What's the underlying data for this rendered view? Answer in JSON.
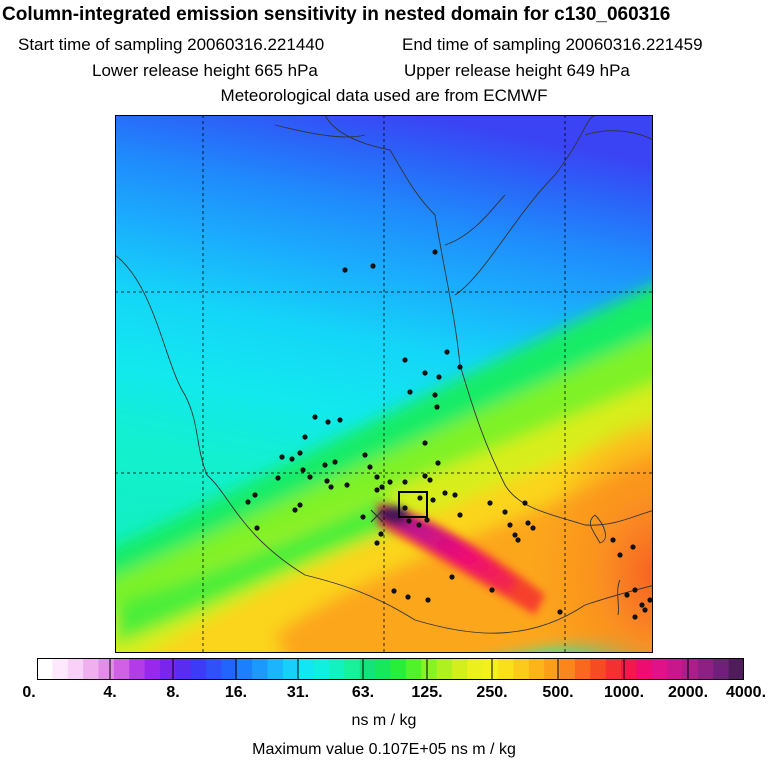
{
  "header": {
    "title": "Column-integrated emission sensitivity in nested domain for c130_060316",
    "start_time": "Start time of sampling 20060316.221440",
    "end_time": "End time of sampling 20060316.221459",
    "lower_release": "Lower release height  665 hPa",
    "upper_release": "Upper release height  649 hPa",
    "met_data": "Meteorological data used are from ECMWF"
  },
  "colorbar": {
    "labels": [
      "0.",
      "4.",
      "8.",
      "16.",
      "31.",
      "63.",
      "125.",
      "250.",
      "500.",
      "1000.",
      "2000.",
      "4000."
    ],
    "units": "ns m / kg",
    "colors": [
      "#ffffff",
      "#fde8fd",
      "#f8d0f8",
      "#f0b0f0",
      "#e38de8",
      "#d060e6",
      "#b33ce8",
      "#9a28ea",
      "#7a25ec",
      "#5a2cf0",
      "#3c3cf4",
      "#3050f8",
      "#2066fa",
      "#1a80fc",
      "#1c99fd",
      "#1cb4fd",
      "#18cffa",
      "#12e6f2",
      "#10f0e0",
      "#12f2c0",
      "#16f19a",
      "#14e27a",
      "#16e85a",
      "#28ee3a",
      "#50f22a",
      "#84f424",
      "#aef020",
      "#d2ee1c",
      "#ecf01c",
      "#f4f01c",
      "#fae01a",
      "#fcca1a",
      "#fdb41a",
      "#fc9e1a",
      "#fa861c",
      "#f8681e",
      "#f64c22",
      "#f43030",
      "#f2184c",
      "#ee0c70",
      "#e0128a",
      "#c8168c",
      "#ad1e8a",
      "#8e2084",
      "#70207a",
      "#501c5c"
    ]
  },
  "max_value": "Maximum value  0.107E+05 ns m / kg"
}
